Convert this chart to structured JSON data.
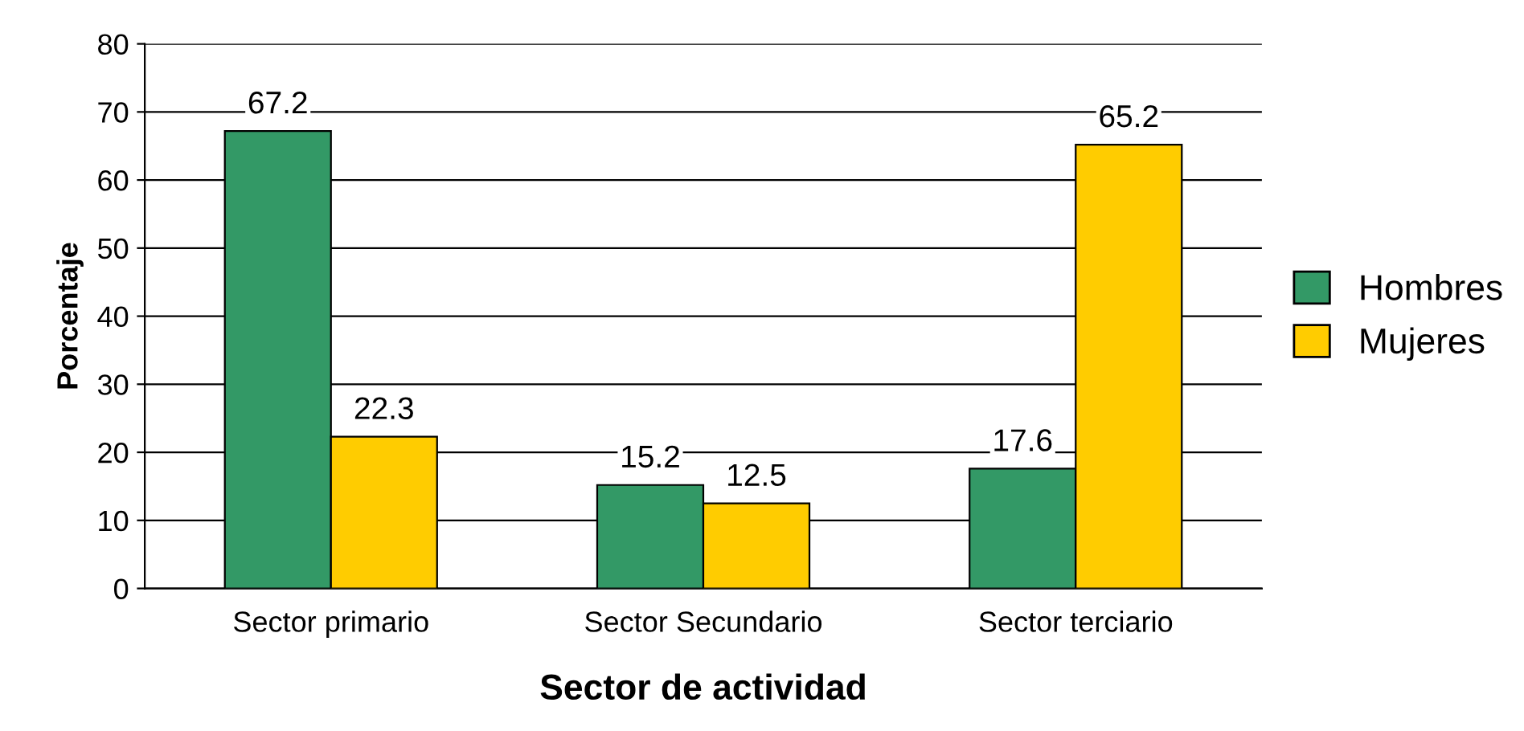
{
  "chart_data": {
    "type": "bar",
    "xlabel": "Sector de actividad",
    "ylabel": "Porcentaje",
    "categories": [
      "Sector primario",
      "Sector Secundario",
      "Sector terciario"
    ],
    "series": [
      {
        "name": "Hombres",
        "color": "#339966",
        "values": [
          67.2,
          15.2,
          17.6
        ]
      },
      {
        "name": "Mujeres",
        "color": "#ffcc00",
        "values": [
          22.3,
          12.5,
          65.2
        ]
      }
    ],
    "ylim": [
      0,
      80
    ],
    "yticks": [
      0,
      10,
      20,
      30,
      40,
      50,
      60,
      70,
      80
    ],
    "grid": "y",
    "legend": "right",
    "data_labels": true
  }
}
